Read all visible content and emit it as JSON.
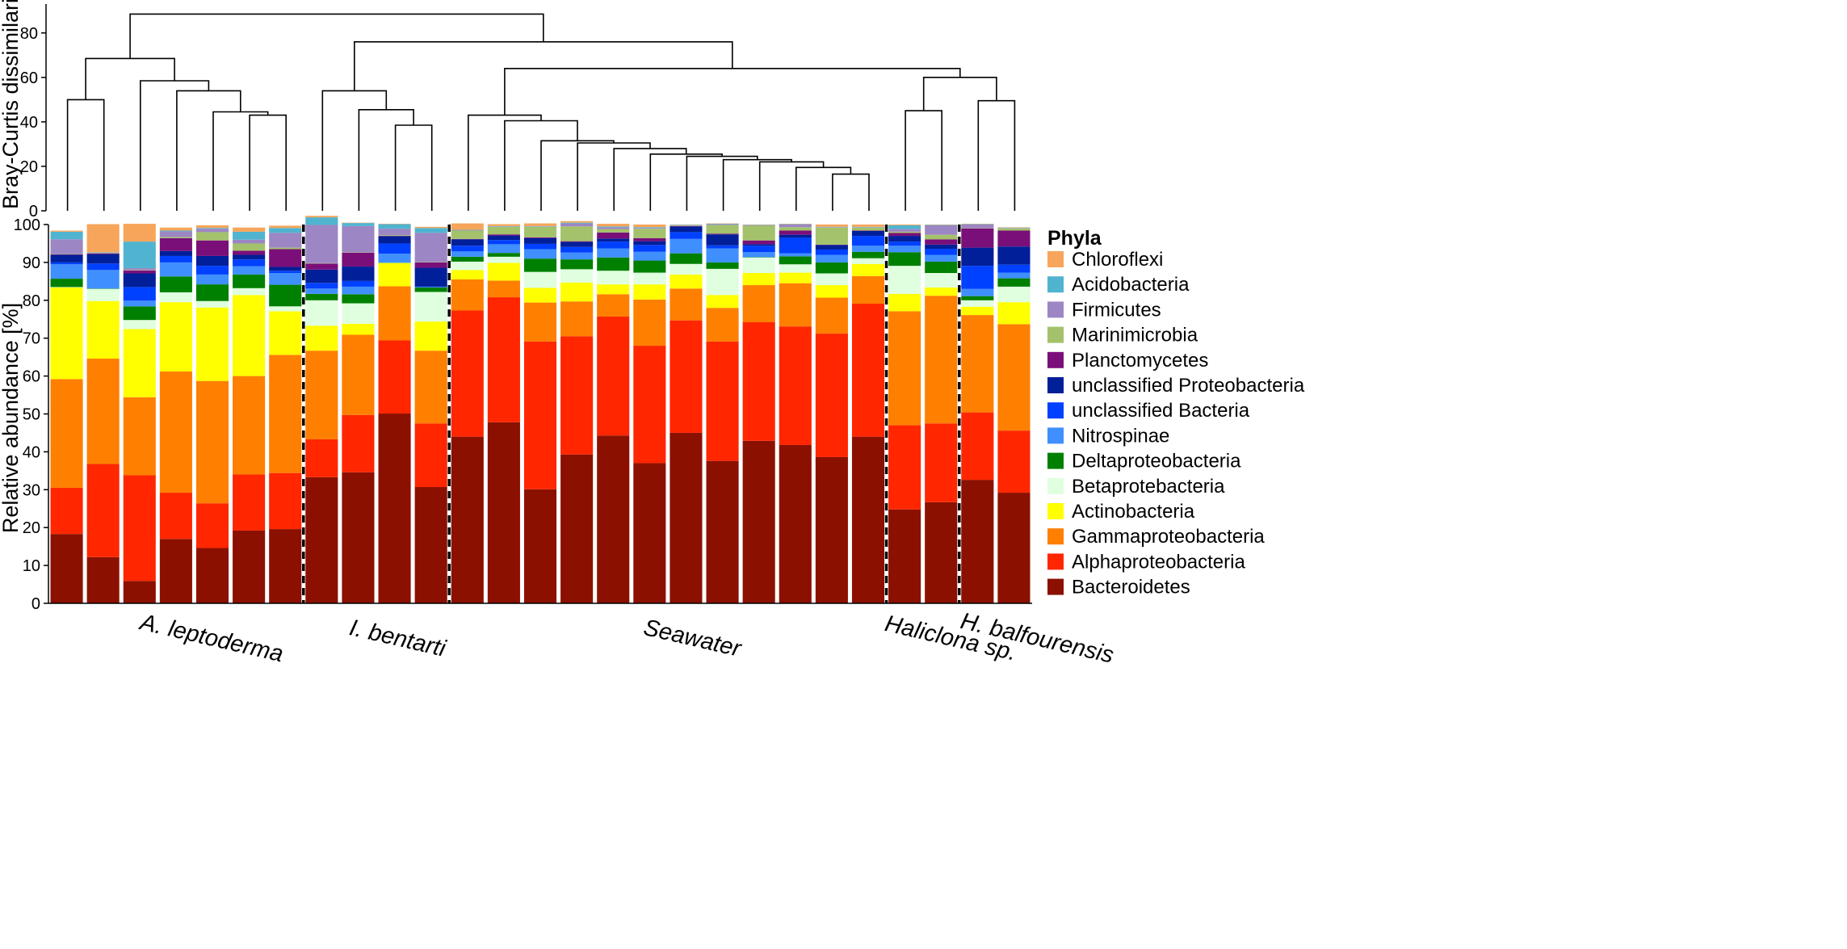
{
  "chart_data": {
    "type": "bar",
    "subtype": "stacked-100-with-dendrogram",
    "dendrogram": {
      "ylabel": "Bray-Curtis dissimilarity",
      "yticks": [
        0,
        20,
        40,
        60,
        80
      ],
      "ylim": [
        0,
        93
      ],
      "merges": [
        {
          "left": "L0",
          "right": "L1",
          "height": 50
        },
        {
          "left": "L5",
          "right": "L6",
          "height": 43
        },
        {
          "left": "L4",
          "right": "M1",
          "height": 44.5
        },
        {
          "left": "L3",
          "right": "M2",
          "height": 54
        },
        {
          "left": "L2",
          "right": "M3",
          "height": 58.5
        },
        {
          "left": "M0",
          "right": "M4",
          "height": 68.5
        },
        {
          "left": "L9",
          "right": "L10",
          "height": 38.5
        },
        {
          "left": "L8",
          "right": "M6",
          "height": 45.5
        },
        {
          "left": "L7",
          "right": "M7",
          "height": 54
        },
        {
          "left": "L21",
          "right": "L22",
          "height": 16.5
        },
        {
          "left": "L20",
          "right": "M9",
          "height": 19.5
        },
        {
          "left": "L19",
          "right": "M10",
          "height": 22
        },
        {
          "left": "L18",
          "right": "M11",
          "height": 23
        },
        {
          "left": "L17",
          "right": "M12",
          "height": 24.5
        },
        {
          "left": "L16",
          "right": "M13",
          "height": 25.5
        },
        {
          "left": "L15",
          "right": "M14",
          "height": 28
        },
        {
          "left": "L14",
          "right": "M15",
          "height": 30.5
        },
        {
          "left": "L13",
          "right": "M16",
          "height": 31.5
        },
        {
          "left": "L12",
          "right": "M17",
          "height": 40.5
        },
        {
          "left": "L11",
          "right": "M18",
          "height": 43
        },
        {
          "left": "L23",
          "right": "L24",
          "height": 45
        },
        {
          "left": "L25",
          "right": "L26",
          "height": 49.5
        },
        {
          "left": "M20",
          "right": "M21",
          "height": 60
        },
        {
          "left": "M19",
          "right": "M22",
          "height": 64
        },
        {
          "left": "M8",
          "right": "M23",
          "height": 76
        },
        {
          "left": "M5",
          "right": "M24",
          "height": 88.5
        }
      ]
    },
    "bars": {
      "ylabel": "Relative abundance [%]",
      "ylim": [
        0,
        100
      ],
      "yticks": [
        0,
        10,
        20,
        30,
        40,
        50,
        60,
        70,
        80,
        90,
        100
      ],
      "phyla": [
        "Bacteroidetes",
        "Alphaproteobacteria",
        "Gammaproteobacteria",
        "Actinobacteria",
        "Betaprotebacteria",
        "Deltaproteobacteria",
        "Nitrospinae",
        "unclassified Bacteria",
        "unclassified Proteobacteria",
        "Planctomycetes",
        "Marinimicrobia",
        "Firmicutes",
        "Acidobacteria",
        "Chloroflexi"
      ],
      "colors": [
        "#8b1000",
        "#ff2600",
        "#ff7f00",
        "#ffff00",
        "#dfffdf",
        "#008000",
        "#3f8fff",
        "#0040ff",
        "#001f99",
        "#7a0f7a",
        "#a3c26b",
        "#9c86c4",
        "#50b4d0",
        "#f6a55a"
      ],
      "samples": [
        {
          "group": "A. leptoderma",
          "values": [
            18.3,
            12.2,
            28.7,
            24.2,
            0.1,
            2.2,
            3.8,
            0.5,
            2.0,
            0.1,
            0.1,
            3.9,
            2.0,
            0.3
          ]
        },
        {
          "group": "A. leptoderma",
          "values": [
            12.2,
            24.6,
            27.8,
            15.2,
            3.2,
            0.1,
            4.9,
            1.7,
            2.5,
            0.2,
            0.1,
            0.1,
            0.1,
            7.4
          ]
        },
        {
          "group": "A. leptoderma",
          "values": [
            5.9,
            27.9,
            20.6,
            18.0,
            2.4,
            3.6,
            1.5,
            3.6,
            3.6,
            0.8,
            0.1,
            0.5,
            7.0,
            4.7
          ]
        },
        {
          "group": "A. leptoderma",
          "values": [
            17.0,
            12.2,
            32.0,
            18.3,
            2.6,
            4.2,
            3.7,
            1.7,
            1.3,
            3.4,
            0.3,
            1.5,
            0.2,
            0.8
          ]
        },
        {
          "group": "A. leptoderma",
          "values": [
            14.6,
            11.8,
            32.3,
            19.4,
            1.7,
            4.4,
            2.6,
            2.3,
            2.6,
            4.1,
            2.2,
            0.9,
            0.2,
            0.7
          ]
        },
        {
          "group": "A. leptoderma",
          "values": [
            19.2,
            14.8,
            26.0,
            21.4,
            1.8,
            3.6,
            2.2,
            1.8,
            1.2,
            1.1,
            1.9,
            1.0,
            2.1,
            1.1
          ]
        },
        {
          "group": "A. leptoderma",
          "values": [
            19.6,
            14.8,
            31.2,
            11.5,
            1.3,
            5.7,
            3.1,
            0.6,
            1.0,
            4.7,
            0.4,
            3.9,
            1.3,
            0.6
          ]
        },
        {
          "group": "I. bentarti",
          "values": [
            33.3,
            10.0,
            23.4,
            6.6,
            6.7,
            1.7,
            1.4,
            1.5,
            3.5,
            1.6,
            0.1,
            10.1,
            2.0,
            0.4
          ]
        },
        {
          "group": "I. bentarti",
          "values": [
            34.6,
            15.1,
            21.2,
            2.9,
            5.4,
            2.4,
            2.0,
            1.5,
            3.8,
            3.7,
            0.1,
            6.9,
            0.8,
            0.1
          ]
        },
        {
          "group": "I. bentarti",
          "values": [
            50.1,
            19.3,
            14.3,
            6.1,
            0.1,
            0.1,
            2.3,
            2.7,
            1.9,
            0.1,
            0.2,
            1.7,
            1.2,
            0.1
          ]
        },
        {
          "group": "I. bentarti",
          "values": [
            30.7,
            16.8,
            19.2,
            7.7,
            7.8,
            1.2,
            0.1,
            0.1,
            5.0,
            1.4,
            0.1,
            7.7,
            1.3,
            0.3
          ]
        },
        {
          "group": "Seawater",
          "values": [
            44.0,
            33.3,
            8.2,
            2.5,
            2.2,
            1.3,
            1.4,
            1.5,
            1.7,
            0.1,
            2.2,
            0.1,
            0.1,
            1.7
          ]
        },
        {
          "group": "Seawater",
          "values": [
            47.8,
            33.0,
            4.4,
            4.7,
            1.6,
            1.0,
            2.3,
            1.1,
            1.2,
            0.3,
            2.0,
            0.1,
            0.1,
            0.5
          ]
        },
        {
          "group": "Seawater",
          "values": [
            30.1,
            39.0,
            10.3,
            3.9,
            4.2,
            3.5,
            2.5,
            1.4,
            1.5,
            0.2,
            2.8,
            0.1,
            0.1,
            0.7
          ]
        },
        {
          "group": "Seawater",
          "values": [
            39.3,
            31.2,
            9.2,
            5.0,
            3.5,
            2.6,
            1.8,
            1.5,
            1.3,
            0.2,
            3.9,
            0.8,
            0.2,
            0.4
          ]
        },
        {
          "group": "Seawater",
          "values": [
            44.3,
            31.4,
            5.9,
            2.6,
            3.6,
            3.5,
            2.4,
            1.8,
            0.8,
            1.6,
            0.9,
            0.5,
            0.2,
            0.7
          ]
        },
        {
          "group": "Seawater",
          "values": [
            37.0,
            31.0,
            12.2,
            4.0,
            3.1,
            3.2,
            2.3,
            1.8,
            1.0,
            0.8,
            2.5,
            0.2,
            0.2,
            0.7
          ]
        },
        {
          "group": "Seawater",
          "values": [
            45.0,
            29.7,
            8.4,
            3.7,
            2.8,
            2.8,
            3.8,
            1.8,
            1.5,
            0.1,
            0.1,
            0.1,
            0.1,
            0.1
          ]
        },
        {
          "group": "Seawater",
          "values": [
            37.6,
            31.5,
            8.9,
            3.4,
            6.9,
            1.7,
            3.7,
            0.8,
            2.9,
            0.2,
            2.3,
            0.2,
            0.1,
            0.1
          ]
        },
        {
          "group": "Seawater",
          "values": [
            42.9,
            31.3,
            9.8,
            3.2,
            4.1,
            0.1,
            1.3,
            1.7,
            0.4,
            1.0,
            3.9,
            0.1,
            0.1,
            0.1
          ]
        },
        {
          "group": "Seawater",
          "values": [
            41.8,
            31.3,
            11.4,
            2.8,
            2.2,
            2.1,
            0.8,
            4.1,
            0.8,
            1.1,
            0.9,
            0.7,
            0.1,
            0.1
          ]
        },
        {
          "group": "Seawater",
          "values": [
            38.6,
            32.6,
            9.5,
            3.3,
            3.1,
            2.9,
            2.0,
            1.4,
            1.2,
            0.1,
            4.5,
            0.1,
            0.1,
            0.6
          ]
        },
        {
          "group": "Seawater",
          "values": [
            44.0,
            35.1,
            7.3,
            3.2,
            1.5,
            1.7,
            1.6,
            2.6,
            1.3,
            0.1,
            0.8,
            0.1,
            0.1,
            0.6
          ]
        },
        {
          "group": "Haliclona sp.",
          "values": [
            24.8,
            22.2,
            30.1,
            4.6,
            7.4,
            3.6,
            1.7,
            1.1,
            1.5,
            0.8,
            0.3,
            0.7,
            1.0,
            0.2
          ]
        },
        {
          "group": "Haliclona sp.",
          "values": [
            26.7,
            20.8,
            33.7,
            2.2,
            3.8,
            3.0,
            1.8,
            1.6,
            1.1,
            1.4,
            1.2,
            2.5,
            0.1,
            0.1
          ]
        },
        {
          "group": "H. balfourensis",
          "values": [
            32.6,
            17.8,
            25.7,
            2.2,
            1.7,
            1.1,
            1.9,
            6.1,
            4.8,
            5.1,
            0.1,
            0.9,
            0.1,
            0.1
          ]
        },
        {
          "group": "H. balfourensis",
          "values": [
            29.2,
            16.4,
            28.1,
            5.8,
            4.1,
            2.2,
            1.5,
            2.1,
            4.8,
            4.2,
            0.6,
            0.1,
            0.1,
            0.1
          ]
        }
      ]
    },
    "legend": {
      "title": "Phyla",
      "position": "right"
    },
    "groups": [
      "A. leptoderma",
      "I. bentarti",
      "Seawater",
      "Haliclona sp.",
      "H. balfourensis"
    ]
  }
}
